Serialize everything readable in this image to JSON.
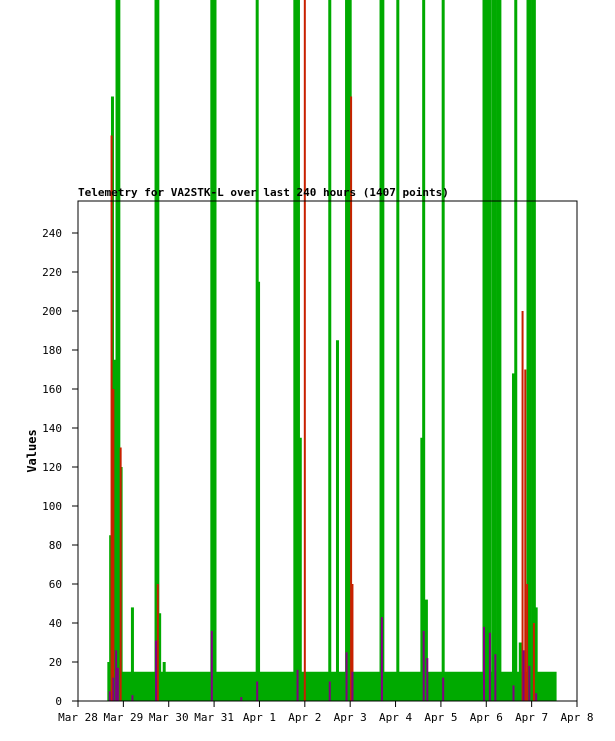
{
  "chart_data": {
    "type": "bar",
    "title": "Telemetry for VA2STK-L over last 240 hours (1407 points)",
    "ylabel": "Values",
    "xlabel": "",
    "ylim": [
      0,
      255
    ],
    "y_ticks": [
      0,
      20,
      40,
      60,
      80,
      100,
      120,
      140,
      160,
      180,
      200,
      220,
      240
    ],
    "x_ticks": [
      "Mar 28",
      "Mar 29",
      "Mar 30",
      "Mar 31",
      "Apr 1",
      "Apr 2",
      "Apr 3",
      "Apr 4",
      "Apr 5",
      "Apr 6",
      "Apr 7",
      "Apr 8"
    ],
    "x_range_days": [
      0,
      11
    ],
    "grid": false,
    "legend": "none",
    "series": [
      {
        "color": "#00aa00",
        "baseline": {
          "start_day": 0.65,
          "end_day": 10.55,
          "value": 15
        },
        "spikes": [
          {
            "day": 0.68,
            "value": 20
          },
          {
            "day": 0.72,
            "value": 85
          },
          {
            "day": 0.76,
            "value": 310
          },
          {
            "day": 0.8,
            "value": 175
          },
          {
            "day": 0.86,
            "value": 400
          },
          {
            "day": 0.9,
            "value": 400
          },
          {
            "day": 0.95,
            "value": 120
          },
          {
            "day": 1.2,
            "value": 48
          },
          {
            "day": 1.72,
            "value": 400
          },
          {
            "day": 1.76,
            "value": 400
          },
          {
            "day": 1.8,
            "value": 45
          },
          {
            "day": 1.9,
            "value": 20
          },
          {
            "day": 2.95,
            "value": 400
          },
          {
            "day": 2.99,
            "value": 400
          },
          {
            "day": 3.02,
            "value": 400
          },
          {
            "day": 3.95,
            "value": 400
          },
          {
            "day": 3.98,
            "value": 215
          },
          {
            "day": 4.78,
            "value": 400
          },
          {
            "day": 4.82,
            "value": 400
          },
          {
            "day": 4.86,
            "value": 400
          },
          {
            "day": 4.9,
            "value": 135
          },
          {
            "day": 5.55,
            "value": 400
          },
          {
            "day": 5.72,
            "value": 185
          },
          {
            "day": 5.92,
            "value": 400
          },
          {
            "day": 5.96,
            "value": 400
          },
          {
            "day": 6.0,
            "value": 400
          },
          {
            "day": 6.68,
            "value": 400
          },
          {
            "day": 6.72,
            "value": 400
          },
          {
            "day": 7.05,
            "value": 400
          },
          {
            "day": 7.58,
            "value": 135
          },
          {
            "day": 7.62,
            "value": 400
          },
          {
            "day": 7.68,
            "value": 52
          },
          {
            "day": 8.05,
            "value": 400
          },
          {
            "day": 8.95,
            "value": 400
          },
          {
            "day": 8.98,
            "value": 400
          },
          {
            "day": 9.02,
            "value": 400
          },
          {
            "day": 9.08,
            "value": 400
          },
          {
            "day": 9.15,
            "value": 400
          },
          {
            "day": 9.2,
            "value": 400
          },
          {
            "day": 9.26,
            "value": 400
          },
          {
            "day": 9.3,
            "value": 400
          },
          {
            "day": 9.6,
            "value": 168
          },
          {
            "day": 9.65,
            "value": 400
          },
          {
            "day": 9.75,
            "value": 30
          },
          {
            "day": 9.92,
            "value": 400
          },
          {
            "day": 9.96,
            "value": 400
          },
          {
            "day": 10.02,
            "value": 400
          },
          {
            "day": 10.06,
            "value": 400
          },
          {
            "day": 10.1,
            "value": 48
          }
        ]
      },
      {
        "color": "#c82000",
        "spikes": [
          {
            "day": 0.74,
            "value": 290
          },
          {
            "day": 0.78,
            "value": 160
          },
          {
            "day": 0.94,
            "value": 130
          },
          {
            "day": 1.76,
            "value": 60
          },
          {
            "day": 5.0,
            "value": 400
          },
          {
            "day": 6.02,
            "value": 310
          },
          {
            "day": 6.05,
            "value": 60
          },
          {
            "day": 9.8,
            "value": 200
          },
          {
            "day": 9.86,
            "value": 170
          },
          {
            "day": 9.9,
            "value": 60
          },
          {
            "day": 10.05,
            "value": 40
          }
        ]
      },
      {
        "color": "#800080",
        "base": [
          {
            "day": 0.7,
            "value": 5
          },
          {
            "day": 0.78,
            "value": 12
          },
          {
            "day": 0.84,
            "value": 26
          },
          {
            "day": 0.88,
            "value": 17
          },
          {
            "day": 1.2,
            "value": 3
          },
          {
            "day": 1.72,
            "value": 31
          },
          {
            "day": 2.95,
            "value": 36
          },
          {
            "day": 3.6,
            "value": 2
          },
          {
            "day": 3.95,
            "value": 10
          },
          {
            "day": 4.84,
            "value": 16
          },
          {
            "day": 5.55,
            "value": 10
          },
          {
            "day": 5.92,
            "value": 25
          },
          {
            "day": 6.05,
            "value": 15
          },
          {
            "day": 6.7,
            "value": 43
          },
          {
            "day": 7.62,
            "value": 36
          },
          {
            "day": 7.7,
            "value": 22
          },
          {
            "day": 8.05,
            "value": 12
          },
          {
            "day": 8.95,
            "value": 38
          },
          {
            "day": 9.08,
            "value": 35
          },
          {
            "day": 9.2,
            "value": 24
          },
          {
            "day": 9.6,
            "value": 8
          },
          {
            "day": 9.82,
            "value": 26
          },
          {
            "day": 9.95,
            "value": 18
          },
          {
            "day": 10.1,
            "value": 4
          }
        ]
      }
    ]
  }
}
